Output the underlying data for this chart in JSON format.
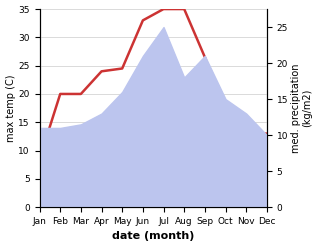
{
  "months": [
    "Jan",
    "Feb",
    "Mar",
    "Apr",
    "May",
    "Jun",
    "Jul",
    "Aug",
    "Sep",
    "Oct",
    "Nov",
    "Dec"
  ],
  "temp": [
    8.5,
    20.0,
    20.0,
    24.0,
    24.5,
    33.0,
    35.0,
    35.0,
    26.5,
    17.0,
    13.0,
    13.0
  ],
  "precip": [
    11.0,
    11.0,
    11.5,
    13.0,
    16.0,
    21.0,
    25.0,
    18.0,
    21.0,
    15.0,
    13.0,
    10.0
  ],
  "temp_color": "#cc3333",
  "precip_fill_color": "#bcc5ee",
  "xlabel": "date (month)",
  "ylabel_left": "max temp (C)",
  "ylabel_right": "med. precipitation\n(kg/m2)",
  "ylim_left": [
    0,
    35
  ],
  "ylim_right": [
    0,
    27.5
  ],
  "yticks_left": [
    0,
    5,
    10,
    15,
    20,
    25,
    30,
    35
  ],
  "yticks_right": [
    0,
    5,
    10,
    15,
    20,
    25
  ],
  "background_color": "#ffffff",
  "line_width": 1.8,
  "xlabel_fontsize": 8,
  "tick_fontsize": 6.5,
  "ylabel_fontsize": 7
}
